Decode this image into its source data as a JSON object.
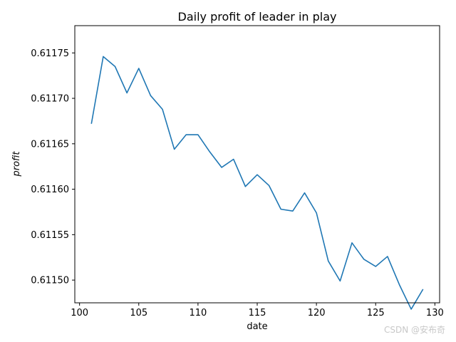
{
  "chart_data": {
    "type": "line",
    "title": "Daily profit of leader in play",
    "xlabel": "date",
    "ylabel": "profit",
    "xlim": [
      99.6,
      130.4
    ],
    "ylim": [
      0.611475,
      0.61178
    ],
    "xticks": [
      100,
      105,
      110,
      115,
      120,
      125,
      130
    ],
    "yticks": [
      0.6115,
      0.61155,
      0.6116,
      0.61165,
      0.6117,
      0.61175
    ],
    "ytick_labels": [
      "0.61150",
      "0.61155",
      "0.61160",
      "0.61165",
      "0.61170",
      "0.61175"
    ],
    "grid": false,
    "series": [
      {
        "color": "#1f77b4",
        "x": [
          101,
          102,
          103,
          104,
          105,
          106,
          107,
          108,
          109,
          110,
          111,
          112,
          113,
          114,
          115,
          116,
          117,
          118,
          119,
          120,
          121,
          122,
          123,
          124,
          125,
          126,
          127,
          128,
          129
        ],
        "y": [
          0.611672,
          0.611746,
          0.611735,
          0.611706,
          0.611733,
          0.611703,
          0.611688,
          0.611644,
          0.61166,
          0.61166,
          0.611641,
          0.611624,
          0.611633,
          0.611603,
          0.611616,
          0.611604,
          0.611578,
          0.611576,
          0.611596,
          0.611574,
          0.611521,
          0.611499,
          0.611541,
          0.611523,
          0.611515,
          0.611526,
          0.611495,
          0.611468,
          0.61149
        ]
      }
    ]
  },
  "watermark": "CSDN @安布奇"
}
